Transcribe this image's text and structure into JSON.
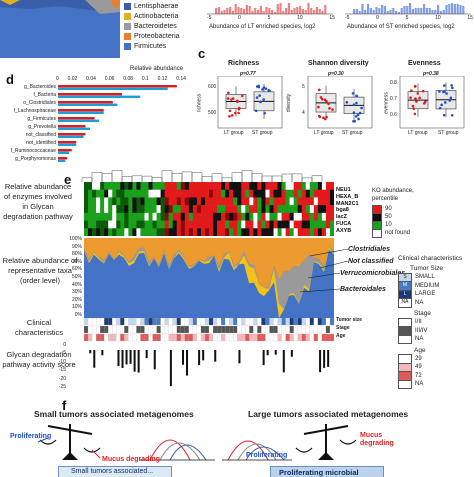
{
  "panel_letters": {
    "c": "c",
    "d": "d",
    "e": "e",
    "f": "f"
  },
  "panel_a": {
    "legend": [
      {
        "label": "Lentisphaerae",
        "color": "#3a5fa8"
      },
      {
        "label": "Actinobacteria",
        "color": "#e0b020"
      },
      {
        "label": "Bacteroidetes",
        "color": "#9a9a9a"
      },
      {
        "label": "Proteobacteria",
        "color": "#ed7d31"
      },
      {
        "label": "Firmicutes",
        "color": "#4472c4"
      }
    ]
  },
  "panel_b": {
    "left_axis_label": "Abundance of LT enriched species, log2",
    "right_axis_label": "Abundance of ST enriched species, log2",
    "left_ticks": [
      "-5",
      "0",
      "5",
      "10",
      "15"
    ],
    "right_ticks": [
      "-5",
      "0",
      "5",
      "10",
      "15"
    ]
  },
  "panel_c": {
    "title_richness": "Richness",
    "p_richness": "p=0.77",
    "ylab_richness": "richness",
    "ticks_richness": [
      "500",
      "600"
    ],
    "title_shannon": "Shannon diversity",
    "p_shannon": "p=0.30",
    "ylab_shannon": "diversity",
    "ticks_shannon": [
      "4",
      "5"
    ],
    "title_evenness": "Evenness",
    "p_evenness": "p=0.38",
    "ylab_evenness": "evenness",
    "ticks_evenness": [
      "0.6",
      "0.7",
      "0.8"
    ],
    "groups": [
      "LT group",
      "ST group"
    ]
  },
  "panel_d": {
    "axis_title": "Relative abundance",
    "ticks": [
      "0",
      "0.02",
      "0.04",
      "0.06",
      "0.08",
      "0.1",
      "0.12",
      "0.14"
    ],
    "taxa": [
      "g_Bacteroides",
      "f_Bacteria",
      "o_Clostridiales",
      "f_Lachnospiraceae",
      "g_Firmicutes",
      "g_Prevotella",
      "not_classified",
      "not_identified",
      "f_Ruminococcaceae",
      "g_Porphyromonas"
    ]
  },
  "panel_e": {
    "label_glycan": "Relative abundance of enzymes involved in Glycan degradation pathway",
    "label_taxa": "Relative abundance of representative taxa (order level)",
    "label_clinical": "Clinical characteristics",
    "label_score": "Glycan degradation pathway activity score",
    "enzymes": [
      "NEU1",
      "HEXA_B",
      "MAN2C1",
      "bga8",
      "lacZ",
      "FUCA",
      "AXYB"
    ],
    "ko_legend_title": "KO abundance, percentile",
    "ko_legend": [
      {
        "label": "90",
        "color": "#e31a1c"
      },
      {
        "label": "50",
        "color": "#111111"
      },
      {
        "label": "10",
        "color": "#1aa01a"
      },
      {
        "label": "not found",
        "color": "#ffffff"
      }
    ],
    "pct_ticks": [
      "100%",
      "90%",
      "80%",
      "70%",
      "60%",
      "50%",
      "40%",
      "30%",
      "20%",
      "10%",
      "0%"
    ],
    "taxa_labels": [
      "Clostridiales",
      "Not classified",
      "Verrucomicrobiales",
      "Bacteroidales"
    ],
    "clinical_rows": [
      "Tumor size",
      "Stage",
      "Age"
    ],
    "score_ticks": [
      "0",
      "-5",
      "-10",
      "-15",
      "-20",
      "-25"
    ],
    "clin_legend_title": "Clinical characteristics",
    "tumor_size_title": "Tumor Size",
    "tumor_size": [
      {
        "code": "S",
        "label": "SMALL",
        "color": "#c5d7ee"
      },
      {
        "code": "M",
        "label": "MEDIUM",
        "color": "#4a7ac0"
      },
      {
        "code": "L",
        "label": "LARGE",
        "color": "#1b3a78"
      },
      {
        "code": "NA",
        "label": "NA",
        "color": "#ffffff"
      }
    ],
    "stage_title": "Stage",
    "stage": [
      {
        "label": "I/II",
        "color": "#ffffff"
      },
      {
        "label": "III/IV",
        "color": "#555555"
      },
      {
        "label": "NA",
        "color": "#ffffff"
      }
    ],
    "age_title": "Age",
    "age": [
      {
        "label": "29",
        "color": "#ffffff"
      },
      {
        "label": "49",
        "color": "#f5b8b8"
      },
      {
        "label": "72",
        "color": "#e05a5a"
      },
      {
        "label": "NA",
        "color": "#ffffff"
      }
    ]
  },
  "panel_f": {
    "small_title": "Small tumors associated metagenomes",
    "large_title": "Large tumors associated metagenomes",
    "proliferating": "Proliferating",
    "mucus": "Mucus degrading",
    "bottom_left": "Small tumors associated...",
    "bottom_right": "Proliferating microbial"
  },
  "colors": {
    "lt": "#e31a1c",
    "st": "#1f4fcc",
    "firmicutes": "#4472c4",
    "bacteroidetes": "#9a9a9a",
    "proteobacteria": "#ed7d31",
    "actinobacteria": "#e0b020"
  }
}
